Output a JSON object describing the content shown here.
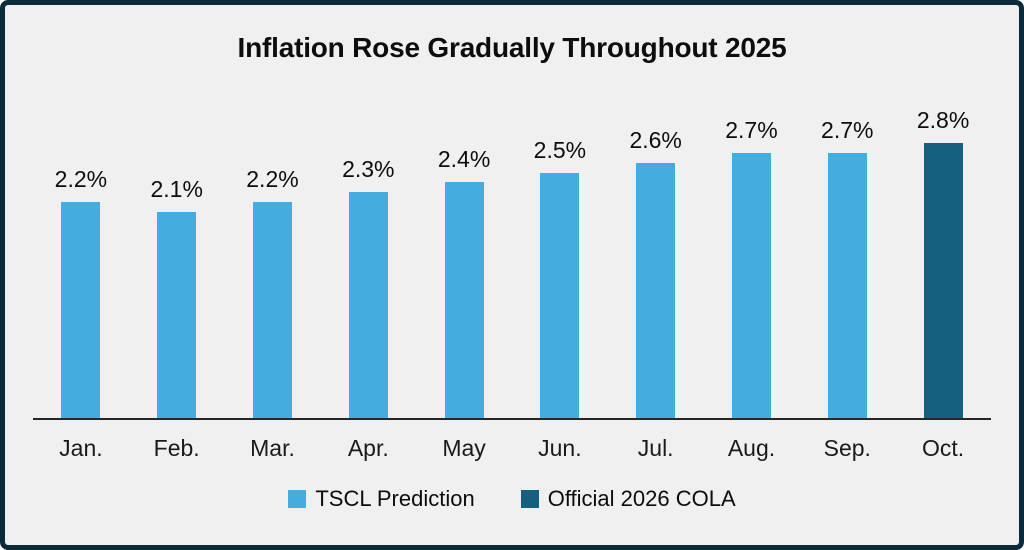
{
  "frame": {
    "border_color": "#0C2B3A",
    "background_color": "#F0F0F0",
    "axis_line_color": "#262626",
    "text_color": "#0D0D0D"
  },
  "chart_data": {
    "type": "bar",
    "title": "Inflation Rose Gradually Throughout 2025",
    "categories": [
      "Jan.",
      "Feb.",
      "Mar.",
      "Apr.",
      "May",
      "Jun.",
      "Jul.",
      "Aug.",
      "Sep.",
      "Oct."
    ],
    "series": [
      {
        "name": "TSCL Prediction",
        "color": "#45ACDF",
        "values": [
          2.2,
          2.1,
          2.2,
          2.3,
          2.4,
          2.5,
          2.6,
          2.7,
          2.7,
          null
        ]
      },
      {
        "name": "Official 2026 COLA",
        "color": "#15607F",
        "values": [
          null,
          null,
          null,
          null,
          null,
          null,
          null,
          null,
          null,
          2.8
        ]
      }
    ],
    "data_labels": [
      "2.2%",
      "2.1%",
      "2.2%",
      "2.3%",
      "2.4%",
      "2.5%",
      "2.6%",
      "2.7%",
      "2.7%",
      "2.8%"
    ],
    "xlabel": "",
    "ylabel": "",
    "ylim": [
      0,
      3.0
    ],
    "grid": false,
    "y_axis_visible": false,
    "legend_position": "bottom"
  }
}
